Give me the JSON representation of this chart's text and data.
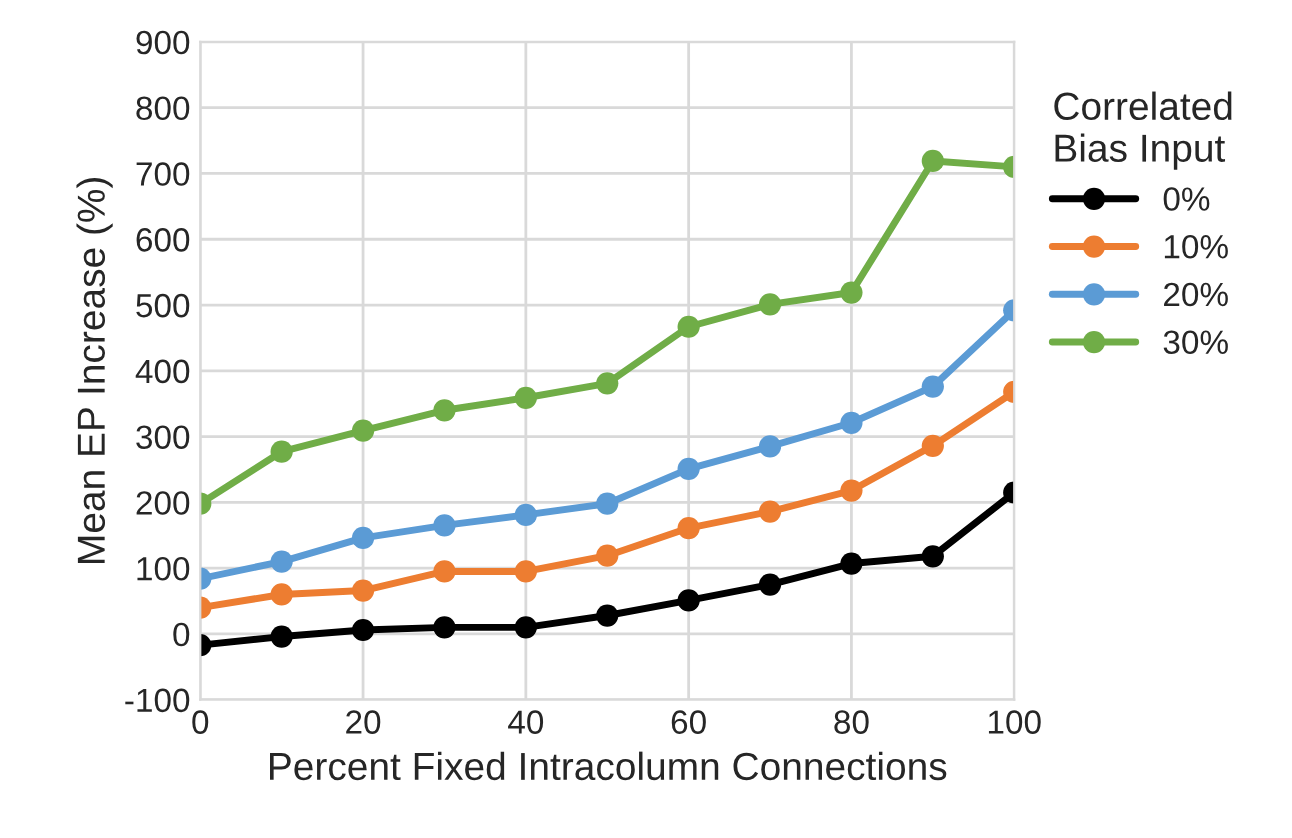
{
  "chart_data": {
    "type": "line",
    "xlabel": "Percent Fixed Intracolumn Connections",
    "ylabel": "Mean EP Increase (%)",
    "legend_title": "Correlated\nBias Input",
    "x": [
      0,
      10,
      20,
      30,
      40,
      50,
      60,
      70,
      80,
      90,
      100
    ],
    "series": [
      {
        "name": "0%",
        "color": "#000000",
        "values": [
          -17,
          -4,
          6,
          10,
          10,
          28,
          51,
          75,
          107,
          118,
          215
        ]
      },
      {
        "name": "10%",
        "color": "#ed7d31",
        "values": [
          40,
          60,
          66,
          95,
          95,
          119,
          161,
          186,
          218,
          286,
          368
        ]
      },
      {
        "name": "20%",
        "color": "#5b9bd5",
        "values": [
          84,
          110,
          146,
          165,
          181,
          198,
          251,
          285,
          321,
          376,
          492
        ]
      },
      {
        "name": "30%",
        "color": "#70ad47",
        "values": [
          198,
          277,
          309,
          340,
          359,
          381,
          467,
          501,
          519,
          719,
          710
        ]
      }
    ],
    "xlim": [
      0,
      100
    ],
    "xticks": [
      0,
      20,
      40,
      60,
      80,
      100
    ],
    "ylim": [
      -100,
      900
    ],
    "yticks": [
      -100,
      0,
      100,
      200,
      300,
      400,
      500,
      600,
      700,
      800,
      900
    ],
    "grid": true,
    "legend": "right",
    "marker": "circle",
    "line_style": "solid"
  }
}
